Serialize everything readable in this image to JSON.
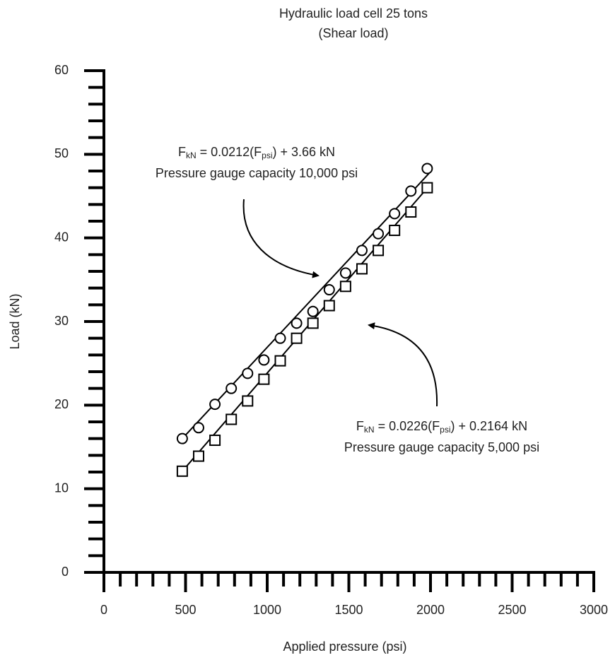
{
  "chart_data": {
    "type": "scatter",
    "title": [
      "Hydraulic load cell 25 tons",
      "(Shear load)"
    ],
    "x_label": "Applied pressure (psi)",
    "y_label": "Load (kN)",
    "xlim": [
      0,
      3000
    ],
    "ylim": [
      0,
      60
    ],
    "xticks": [
      0,
      500,
      1000,
      1500,
      2000,
      2500,
      3000
    ],
    "yticks": [
      0,
      10,
      20,
      30,
      40,
      50,
      60
    ],
    "xminorticks": [
      100,
      200,
      300,
      400,
      600,
      700,
      800,
      900,
      1100,
      1200,
      1300,
      1400,
      1600,
      1700,
      1800,
      1900,
      2100,
      2200,
      2300,
      2400,
      2600,
      2700,
      2800,
      2900
    ],
    "yminorticks": [
      2,
      4,
      6,
      8,
      12,
      14,
      16,
      18,
      22,
      24,
      26,
      28,
      32,
      34,
      36,
      38,
      42,
      44,
      46,
      48,
      52,
      54,
      56,
      58
    ],
    "x": [
      480,
      580,
      680,
      780,
      880,
      980,
      1080,
      1180,
      1280,
      1380,
      1480,
      1580,
      1680,
      1780,
      1880,
      1980
    ],
    "series": [
      {
        "marker": "circle",
        "color": "#000000",
        "values": [
          16.0,
          17.3,
          20.1,
          22.0,
          23.8,
          25.4,
          28.0,
          29.8,
          31.2,
          33.8,
          35.8,
          38.5,
          40.5,
          42.9,
          45.6,
          48.3
        ],
        "fit_x": [
          480,
          1995
        ],
        "fit_values": [
          16.0,
          47.8
        ]
      },
      {
        "marker": "square",
        "color": "#000000",
        "values": [
          12.1,
          13.9,
          15.8,
          18.3,
          20.5,
          23.1,
          25.3,
          28.0,
          29.8,
          31.9,
          34.2,
          36.3,
          38.5,
          40.9,
          43.1,
          46.0
        ],
        "fit_x": [
          480,
          1995
        ],
        "fit_values": [
          12.1,
          46.3
        ]
      }
    ],
    "annotations": [
      {
        "equation": [
          "F",
          "kN",
          " = 0.0212(F",
          "psi",
          ") + 3.66 kN"
        ],
        "note": "Pressure gauge capacity 10,000 psi"
      },
      {
        "equation": [
          "F",
          "kN",
          " = 0.0226(F",
          "psi",
          ") + 0.2164 kN"
        ],
        "note": "Pressure gauge capacity 5,000 psi"
      }
    ]
  }
}
